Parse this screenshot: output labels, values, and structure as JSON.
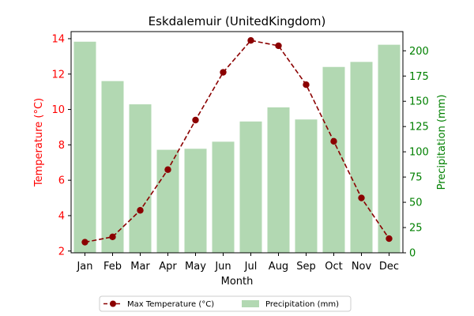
{
  "chart_data": {
    "type": "bar",
    "title": "Eskdalemuir (UnitedKingdom)",
    "xlabel": "Month",
    "ylabel_left": "Temperature (°C)",
    "ylabel_right": "Precipitation (mm)",
    "categories": [
      "Jan",
      "Feb",
      "Mar",
      "Apr",
      "May",
      "Jun",
      "Jul",
      "Aug",
      "Sep",
      "Oct",
      "Nov",
      "Dec"
    ],
    "series": [
      {
        "name": "Max Temperature (°C)",
        "kind": "line",
        "axis": "left",
        "color": "#8b0000",
        "values": [
          2.5,
          2.8,
          4.3,
          6.6,
          9.4,
          12.1,
          13.9,
          13.6,
          11.4,
          8.2,
          5.0,
          2.7
        ]
      },
      {
        "name": "Precipitation (mm)",
        "kind": "bar",
        "axis": "right",
        "color": "#b2d8b2",
        "values": [
          209,
          170,
          147,
          102,
          103,
          110,
          130,
          144,
          132,
          184,
          189,
          206
        ]
      }
    ],
    "ylim_left": [
      1.9,
      14.4
    ],
    "yticks_left": [
      2,
      4,
      6,
      8,
      10,
      12,
      14
    ],
    "ylim_right": [
      0,
      219
    ],
    "yticks_right": [
      0,
      25,
      50,
      75,
      100,
      125,
      150,
      175,
      200
    ],
    "left_axis_color": "#ff0000",
    "right_axis_color": "#008000",
    "grid": false,
    "legend_position": "bottom-center"
  }
}
